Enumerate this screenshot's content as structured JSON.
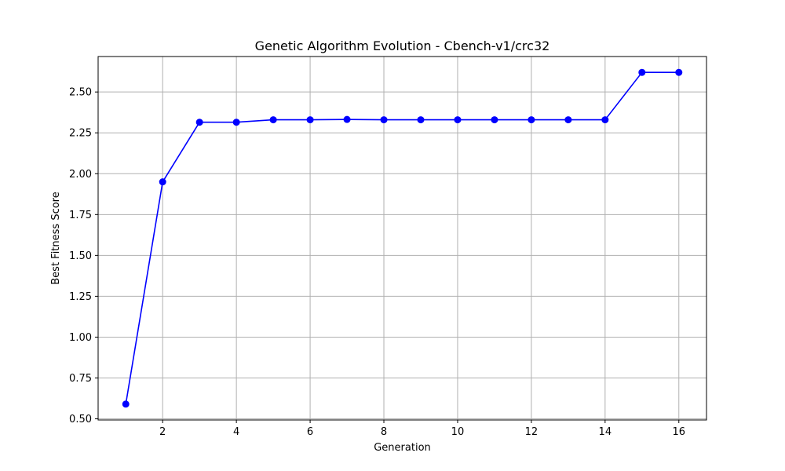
{
  "chart_data": {
    "type": "line",
    "title": "Genetic Algorithm Evolution - Cbench-v1/crc32",
    "xlabel": "Generation",
    "ylabel": "Best Fitness Score",
    "x": [
      1,
      2,
      3,
      4,
      5,
      6,
      7,
      8,
      9,
      10,
      11,
      12,
      13,
      14,
      15,
      16
    ],
    "series": [
      {
        "values": [
          0.59,
          1.95,
          2.315,
          2.315,
          2.33,
          2.33,
          2.332,
          2.33,
          2.33,
          2.33,
          2.33,
          2.33,
          2.33,
          2.33,
          2.62,
          2.62
        ],
        "color": "#0000ff",
        "marker": "circle"
      }
    ],
    "xlim": [
      0.25,
      16.75
    ],
    "ylim": [
      0.493,
      2.717
    ],
    "xticks": [
      2,
      4,
      6,
      8,
      10,
      12,
      14,
      16
    ],
    "xtick_labels": [
      "2",
      "4",
      "6",
      "8",
      "10",
      "12",
      "14",
      "16"
    ],
    "yticks": [
      0.5,
      0.75,
      1.0,
      1.25,
      1.5,
      1.75,
      2.0,
      2.25,
      2.5
    ],
    "ytick_labels": [
      "0.50",
      "0.75",
      "1.00",
      "1.25",
      "1.50",
      "1.75",
      "2.00",
      "2.25",
      "2.50"
    ],
    "grid": true,
    "grid_color": "#b0b0b0"
  }
}
